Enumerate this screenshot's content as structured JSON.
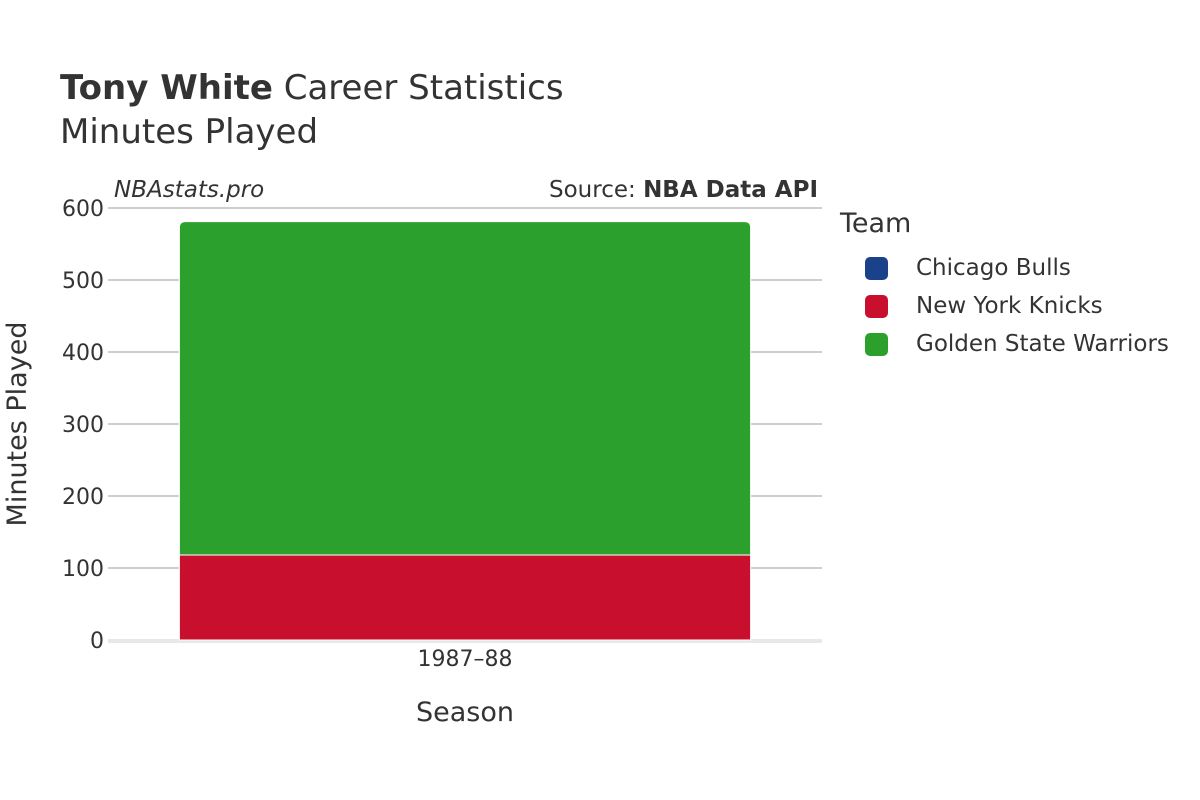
{
  "header": {
    "title_bold": "Tony White",
    "title_rest": " Career Statistics",
    "subtitle": "Minutes Played",
    "watermark": "NBAstats.pro",
    "source_prefix": "Source: ",
    "source_name": "NBA Data API"
  },
  "legend": {
    "title": "Team",
    "position": "right"
  },
  "chart_data": {
    "type": "bar",
    "stacked": true,
    "categories": [
      "1987–88"
    ],
    "series": [
      {
        "name": "Chicago Bulls",
        "color": "#1a428a",
        "values": [
          0
        ]
      },
      {
        "name": "New York Knicks",
        "color": "#c8102e",
        "values": [
          118
        ]
      },
      {
        "name": "Golden State Warriors",
        "color": "#2ca02c",
        "values": [
          463
        ]
      }
    ],
    "xlabel": "Season",
    "ylabel": "Minutes Played",
    "ylim": [
      0,
      600
    ],
    "yticks": [
      0,
      100,
      200,
      300,
      400,
      500,
      600
    ],
    "grid": true
  }
}
